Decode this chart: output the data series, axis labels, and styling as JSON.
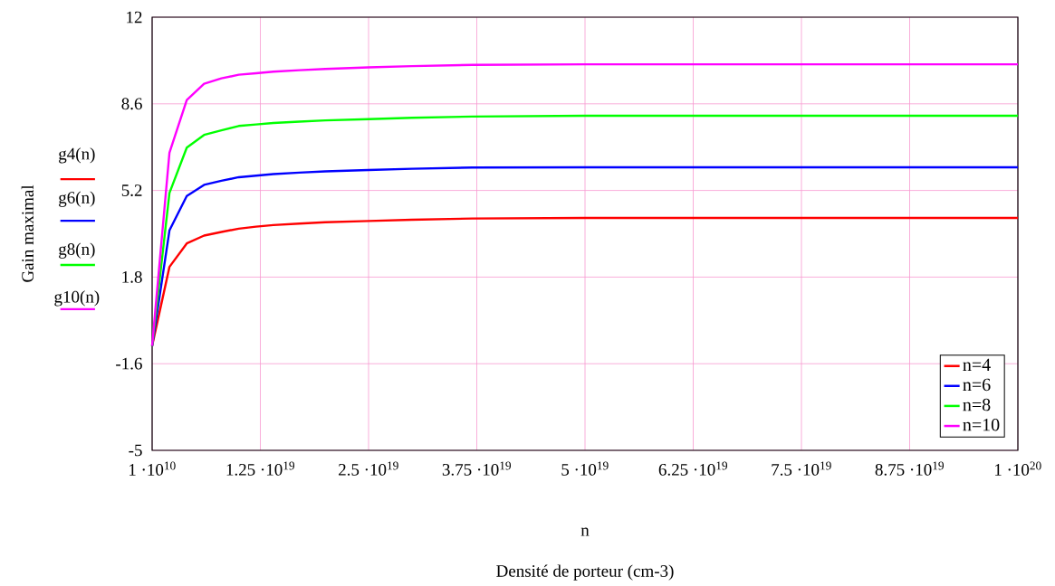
{
  "chart_data": {
    "type": "line",
    "xlabel": "n",
    "ylabel": "Gain maximal",
    "annotations": [
      "g4(n)",
      "g6(n)",
      "g8(n)",
      "g10(n)",
      "Densité de porteur (cm-3)"
    ],
    "x": [
      10000000000.0,
      2e+18,
      4e+18,
      6e+18,
      8e+18,
      1e+19,
      1.2e+19,
      1.4e+19,
      1.7e+19,
      2e+19,
      2.5e+19,
      3e+19,
      3.7e+19,
      5e+19,
      7.5e+19,
      1e+20
    ],
    "series": [
      {
        "name": "n=4",
        "color": "#ff0000",
        "values": [
          -0.9,
          2.2,
          3.12,
          3.43,
          3.57,
          3.7,
          3.78,
          3.84,
          3.9,
          3.95,
          4.0,
          4.05,
          4.1,
          4.12,
          4.12,
          4.12
        ]
      },
      {
        "name": "n=6",
        "color": "#0000ff",
        "values": [
          -0.9,
          3.63,
          4.98,
          5.42,
          5.58,
          5.72,
          5.78,
          5.84,
          5.9,
          5.95,
          6.0,
          6.05,
          6.1,
          6.11,
          6.11,
          6.11
        ]
      },
      {
        "name": "n=8",
        "color": "#00ff00",
        "values": [
          -0.9,
          5.1,
          6.88,
          7.38,
          7.56,
          7.73,
          7.79,
          7.85,
          7.9,
          7.95,
          8.0,
          8.05,
          8.1,
          8.13,
          8.13,
          8.13
        ]
      },
      {
        "name": "n=10",
        "color": "#ff00ff",
        "values": [
          -0.9,
          6.68,
          8.75,
          9.39,
          9.6,
          9.74,
          9.8,
          9.86,
          9.92,
          9.97,
          10.03,
          10.08,
          10.13,
          10.15,
          10.15,
          10.15
        ]
      }
    ],
    "xlim": [
      10000000000.0,
      1e+20
    ],
    "ylim": [
      -5,
      12
    ],
    "xticks": [
      {
        "value": 10000000000.0,
        "label": "1 ·10$^{10}$"
      },
      {
        "value": 1.25e+19,
        "label": "1.25 ·10$^{19}$"
      },
      {
        "value": 2.5e+19,
        "label": "2.5 ·10$^{19}$"
      },
      {
        "value": 3.75e+19,
        "label": "3.75 ·10$^{19}$"
      },
      {
        "value": 5e+19,
        "label": "5 ·10$^{19}$"
      },
      {
        "value": 6.25e+19,
        "label": "6.25 ·10$^{19}$"
      },
      {
        "value": 7.5e+19,
        "label": "7.5 ·10$^{19}$"
      },
      {
        "value": 8.75e+19,
        "label": "8.75 ·10$^{19}$"
      },
      {
        "value": 1e+20,
        "label": "1 ·10$^{20}$"
      }
    ],
    "yticks": [
      -5,
      -1.6,
      1.8,
      5.2,
      8.6,
      12
    ],
    "grid": true,
    "legend": "bottom right",
    "marker": "none",
    "line_style": "solid"
  }
}
